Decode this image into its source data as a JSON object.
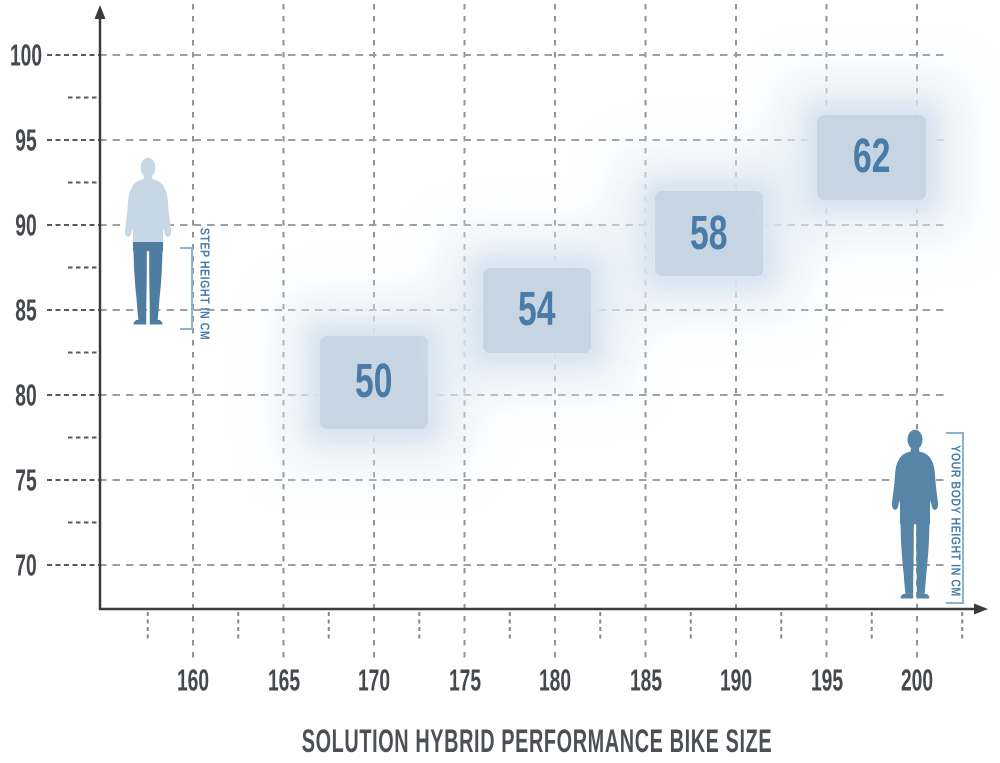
{
  "title": "SOLUTION HYBRID PERFORMANCE BIKE SIZE",
  "annotations": {
    "step_height_label": "STEP HEIGHT IN CM",
    "body_height_label": "YOUR BODY HEIGHT IN CM"
  },
  "colors": {
    "axis": "#393c3f",
    "grid_h": "#9aa0a4",
    "grid_v": "#8e9498",
    "tick_dark": "#56595d",
    "tick_minor": "#82878b",
    "tick_label": "#45484c",
    "title_text": "#4c4f53",
    "box_fill": "#c7d5e3",
    "box_glow": "#dce8f2",
    "size_number": "#4a7ba6",
    "annotation_blue": "#4a7ea6",
    "bracket_blue": "#8db3cf",
    "figure_light": "#c7d7e6",
    "figure_dark": "#4e7da0",
    "figure_right": "#5785a7"
  },
  "chart_data": {
    "type": "scatter",
    "subtype": "2d-range-boxes",
    "title": "SOLUTION HYBRID PERFORMANCE BIKE SIZE",
    "xlabel": "YOUR BODY HEIGHT IN CM",
    "ylabel": "STEP HEIGHT IN CM",
    "xlim": [
      155,
      204
    ],
    "ylim": [
      67.5,
      103
    ],
    "x_ticks": [
      160,
      165,
      170,
      175,
      180,
      185,
      190,
      195,
      200
    ],
    "y_ticks": [
      100,
      95,
      90,
      85,
      80,
      75,
      70
    ],
    "grid": true,
    "legend": false,
    "boxes": [
      {
        "size": "50",
        "body_height_cm": [
          167.0,
          173.0
        ],
        "step_height_cm": [
          78.0,
          83.5
        ]
      },
      {
        "size": "54",
        "body_height_cm": [
          176.0,
          182.0
        ],
        "step_height_cm": [
          82.5,
          87.5
        ]
      },
      {
        "size": "58",
        "body_height_cm": [
          185.5,
          191.5
        ],
        "step_height_cm": [
          87.0,
          92.0
        ]
      },
      {
        "size": "62",
        "body_height_cm": [
          194.5,
          200.5
        ],
        "step_height_cm": [
          91.5,
          96.5
        ]
      }
    ]
  }
}
